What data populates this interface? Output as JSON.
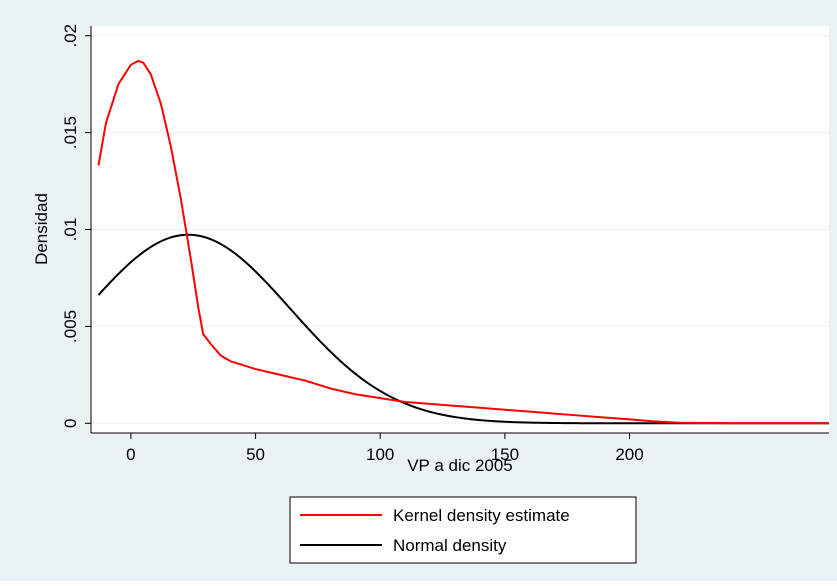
{
  "chart_data": {
    "type": "line",
    "title": "",
    "xlabel": "VP a dic 2005",
    "ylabel": "Densidad",
    "xlim": [
      -16,
      280
    ],
    "ylim": [
      -0.0005,
      0.0205
    ],
    "x_ticks": [
      0,
      50,
      100,
      150,
      200
    ],
    "x_tick_labels": [
      "0",
      "50",
      "100",
      "150",
      "200"
    ],
    "y_ticks": [
      0,
      0.005,
      0.01,
      0.015,
      0.02
    ],
    "y_tick_labels": [
      "0",
      ".005",
      ".01",
      ".015",
      ".02"
    ],
    "grid": true,
    "legend_position": "bottom",
    "colors": {
      "outer_background": "#eaf2f3",
      "plot_background": "#ffffff",
      "grid": "#eaf2f3",
      "axis": "#000000",
      "kernel": "#ff0000",
      "normal": "#000000"
    },
    "series": [
      {
        "name": "Kernel density estimate",
        "color": "#ff0000",
        "x": [
          -13,
          -10,
          -5,
          0,
          3,
          5,
          8,
          12,
          16,
          20,
          24,
          27,
          29,
          32,
          36,
          40,
          50,
          60,
          70,
          80,
          90,
          100,
          110,
          120,
          130,
          140,
          150,
          160,
          170,
          180,
          190,
          200,
          210,
          220,
          240,
          260,
          280
        ],
        "y": [
          0.0133,
          0.0155,
          0.0175,
          0.0185,
          0.0187,
          0.0186,
          0.018,
          0.0165,
          0.0143,
          0.0116,
          0.0085,
          0.006,
          0.0046,
          0.0041,
          0.0035,
          0.0032,
          0.0028,
          0.0025,
          0.0022,
          0.0018,
          0.0015,
          0.0013,
          0.0011,
          0.001,
          0.0009,
          0.0008,
          0.0007,
          0.0006,
          0.0005,
          0.0004,
          0.0003,
          0.0002,
          0.0001,
          3e-05,
          0.0,
          0.0,
          0.0
        ]
      },
      {
        "name": "Normal density",
        "color": "#000000",
        "mean": 23,
        "sd": 41,
        "x_range": [
          -13,
          280
        ]
      }
    ]
  }
}
